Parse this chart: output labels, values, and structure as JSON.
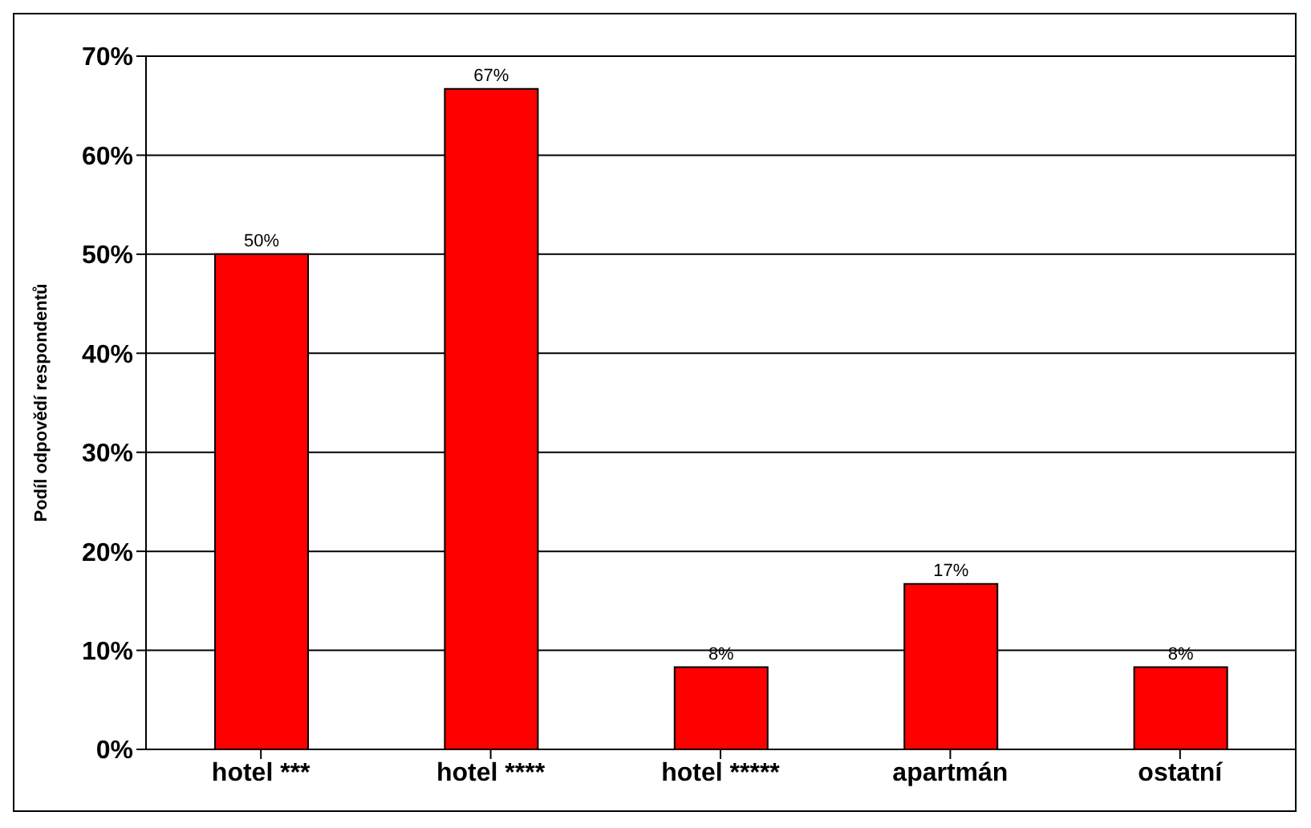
{
  "chart_data": {
    "type": "bar",
    "ylabel": "Podíl odpovědí respondentů",
    "categories": [
      "hotel ***",
      "hotel ****",
      "hotel *****",
      "apartmán",
      "ostatní"
    ],
    "values": [
      50,
      66.7,
      8.3,
      16.7,
      8.3
    ],
    "value_labels": [
      "50%",
      "67%",
      "8%",
      "17%",
      "8%"
    ],
    "color": "#ff0000",
    "ylim": [
      0,
      70
    ],
    "yticks": [
      {
        "value": 0,
        "label": "0%"
      },
      {
        "value": 10,
        "label": "10%"
      },
      {
        "value": 20,
        "label": "20%"
      },
      {
        "value": 30,
        "label": "30%"
      },
      {
        "value": 40,
        "label": "40%"
      },
      {
        "value": 50,
        "label": "50%"
      },
      {
        "value": 60,
        "label": "60%"
      },
      {
        "value": 70,
        "label": "70%"
      }
    ],
    "grid": "y",
    "legend": false
  }
}
